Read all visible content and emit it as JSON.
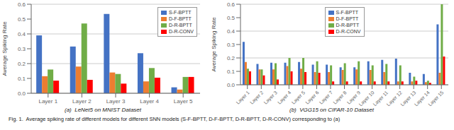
{
  "chart_data": [
    {
      "type": "bar",
      "title": "(a)  LeNet5 on MNIST Dataset",
      "ylabel": "Average Spiking Rate",
      "categories": [
        "Layer 1",
        "Layer 2",
        "Layer 3",
        "Layer 4",
        "Layer 5"
      ],
      "series": [
        {
          "name": "S-F-BPTT",
          "color": "#4472C4",
          "values": [
            0.39,
            0.315,
            0.535,
            0.27,
            0.04
          ]
        },
        {
          "name": "D-F-BPTT",
          "color": "#ED7D31",
          "values": [
            0.115,
            0.18,
            0.14,
            0.08,
            0.025
          ]
        },
        {
          "name": "D-R-BPTT",
          "color": "#70AD47",
          "values": [
            0.16,
            0.47,
            0.13,
            0.17,
            0.11
          ]
        },
        {
          "name": "D-R-CONV",
          "color": "#FF0000",
          "values": [
            0.085,
            0.09,
            0.065,
            0.105,
            0.11
          ]
        }
      ],
      "ylim": [
        0.0,
        0.6
      ],
      "yticks": [
        {
          "value": 0,
          "label": "0.0"
        },
        {
          "value": 0.1,
          "label": "0.1"
        },
        {
          "value": 0.2,
          "label": "0.2"
        },
        {
          "value": 0.3,
          "label": "0.3"
        },
        {
          "value": 0.4,
          "label": "0.4"
        },
        {
          "value": 0.5,
          "label": "0.5"
        },
        {
          "value": 0.6,
          "label": "0.6"
        }
      ],
      "grid": true,
      "legend": "upper right"
    },
    {
      "type": "bar",
      "title": "(b)  VGG15 on CIFAR-10 Dataset",
      "ylabel": "Average Spiking Rate",
      "categories": [
        "Layer 1",
        "Layer 2",
        "Layer 3",
        "Layer 4",
        "Layer 5",
        "Layer 6",
        "Layer 7",
        "Layer 8",
        "Layer 9",
        "Layer 10",
        "Layer 11",
        "Layer 12",
        "Layer 13",
        "Layer 14",
        "Layer 15"
      ],
      "series": [
        {
          "name": "S-F-BPTT",
          "color": "#4472C4",
          "values": [
            0.32,
            0.155,
            0.165,
            0.165,
            0.17,
            0.15,
            0.15,
            0.13,
            0.13,
            0.175,
            0.185,
            0.195,
            0.09,
            0.08,
            0.45
          ]
        },
        {
          "name": "D-F-BPTT",
          "color": "#ED7D31",
          "values": [
            0.17,
            0.115,
            0.115,
            0.14,
            0.12,
            0.095,
            0.095,
            0.11,
            0.115,
            0.11,
            0.095,
            0.025,
            0.025,
            0.02,
            0.09
          ]
        },
        {
          "name": "D-R-BPTT",
          "color": "#70AD47",
          "values": [
            0.12,
            0.115,
            0.16,
            0.2,
            0.2,
            0.175,
            0.145,
            0.16,
            0.175,
            0.145,
            0.155,
            0.145,
            0.06,
            0.03,
            0.6
          ]
        },
        {
          "name": "D-R-CONV",
          "color": "#FF0000",
          "values": [
            0.1,
            0.07,
            0.04,
            0.1,
            0.095,
            0.09,
            0.025,
            0.025,
            0.025,
            0.025,
            0.025,
            0.025,
            0.03,
            0.015,
            0.21
          ]
        }
      ],
      "ylim": [
        0.0,
        0.6
      ],
      "yticks": [
        {
          "value": 0,
          "label": "0.0"
        },
        {
          "value": 0.1,
          "label": "0.1"
        },
        {
          "value": 0.2,
          "label": "0.2"
        },
        {
          "value": 0.3,
          "label": "0.3"
        },
        {
          "value": 0.4,
          "label": "0.4"
        },
        {
          "value": 0.5,
          "label": "0.5"
        },
        {
          "value": 0.6,
          "label": "0.6"
        }
      ],
      "grid": true,
      "legend": "upper center"
    }
  ],
  "caption": "Fig. 1.  Average spiking rate of different models for different SNN models (S-F-BPTT, D-F-BPTT, D-R-BPTT, D-R-CONV) corresponding to (a)"
}
